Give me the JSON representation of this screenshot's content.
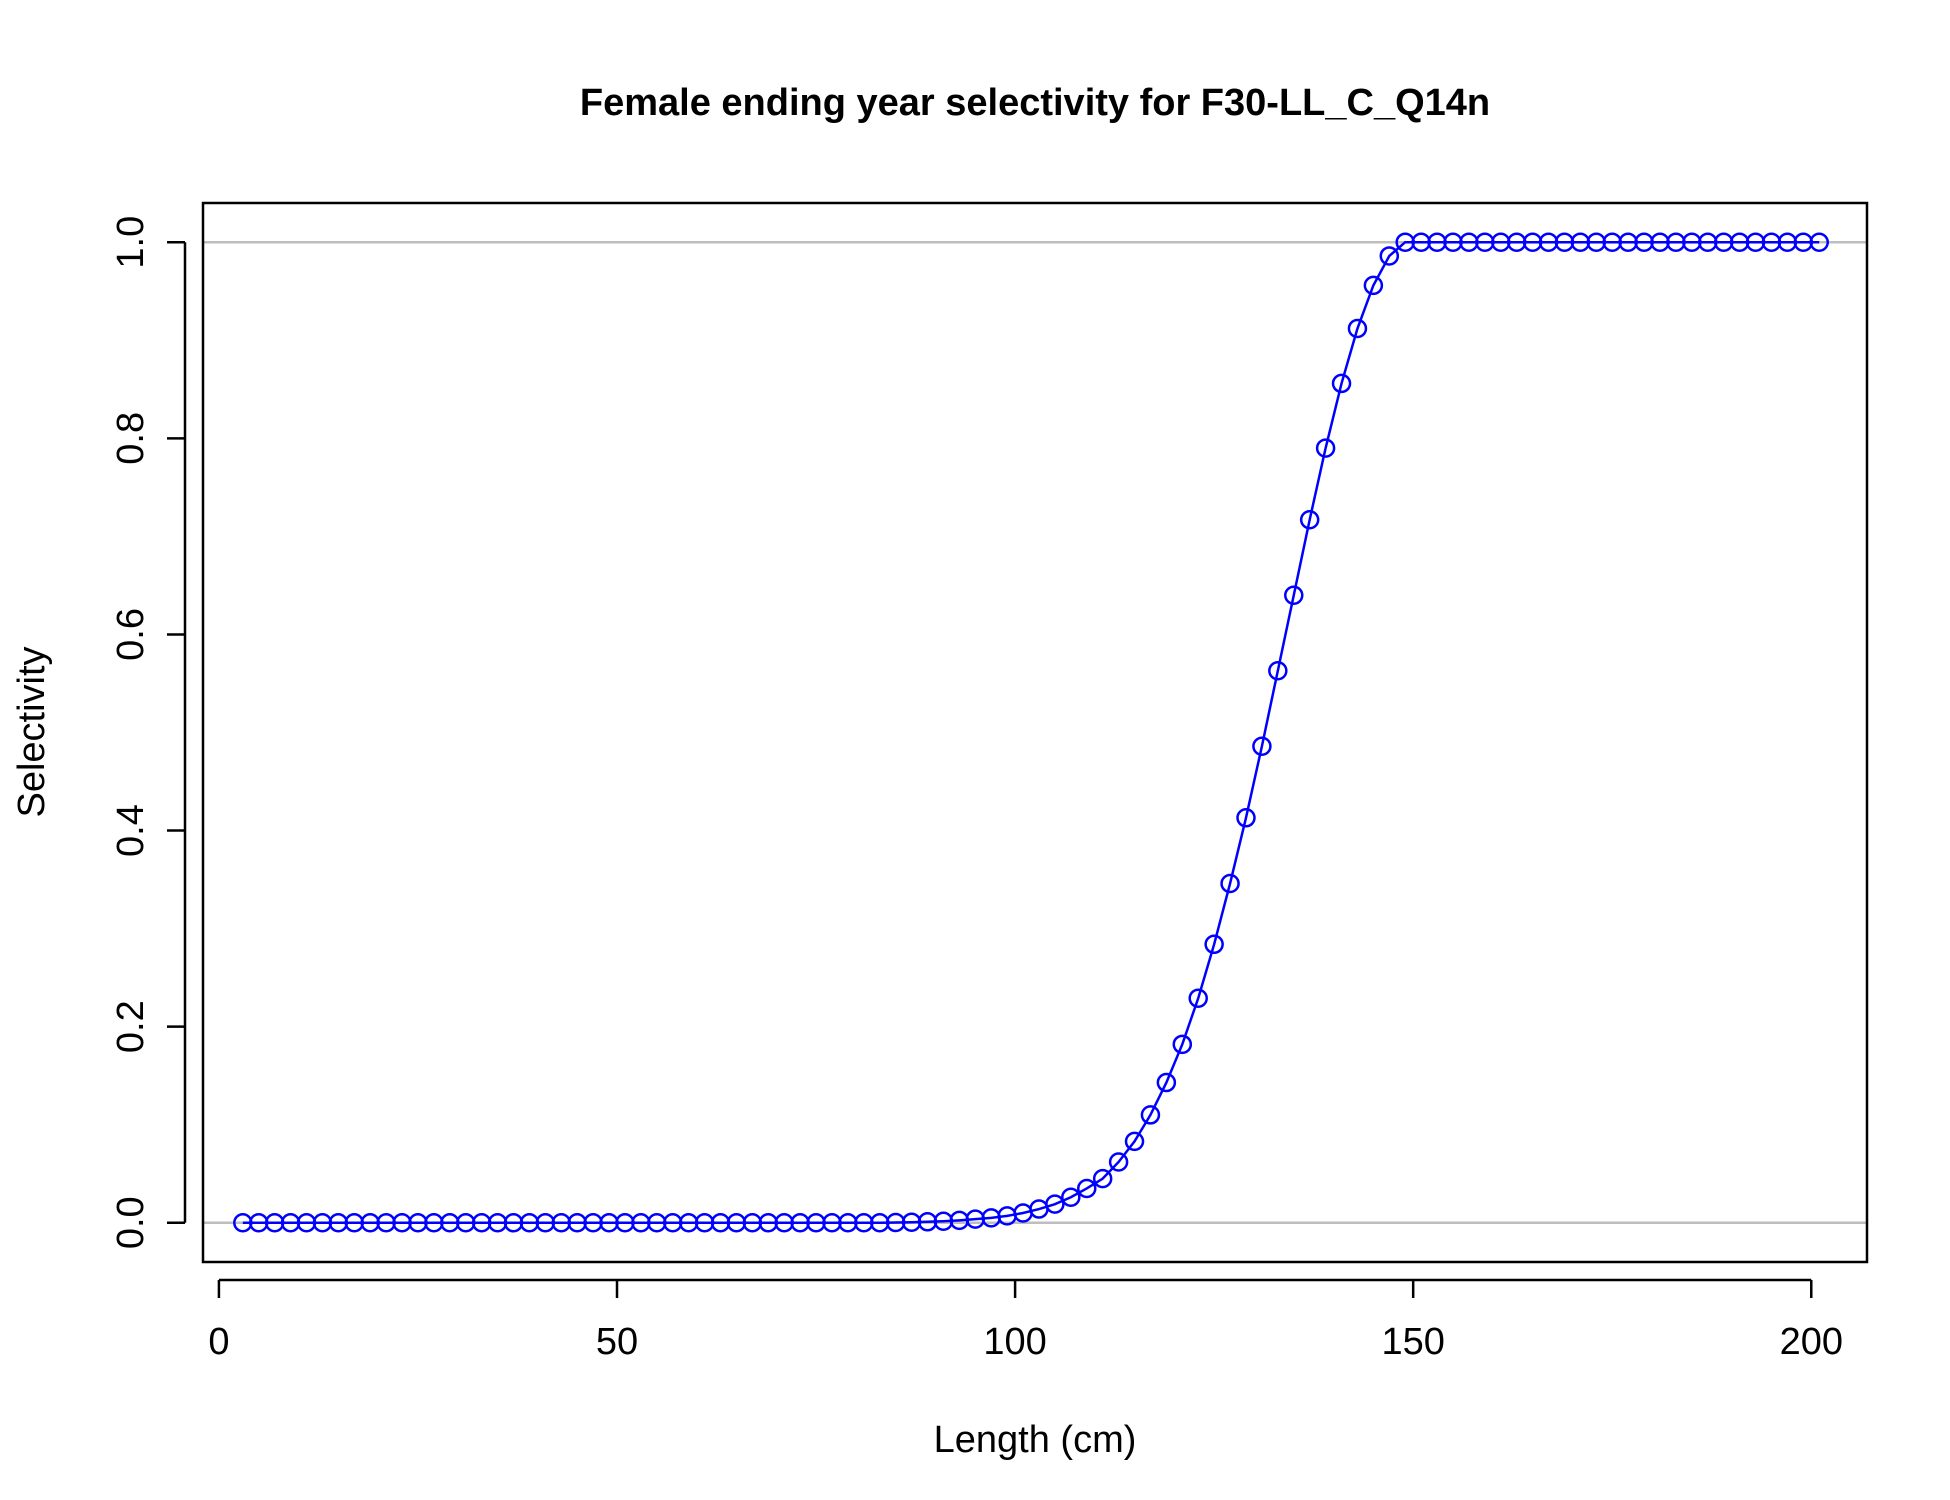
{
  "chart_data": {
    "type": "line",
    "title": "Female ending year selectivity for F30-LL_C_Q14n",
    "xlabel": "Length (cm)",
    "ylabel": "Selectivity",
    "xlim": [
      -2,
      207
    ],
    "ylim": [
      -0.04,
      1.04
    ],
    "x_ticks": [
      0,
      50,
      100,
      150,
      200
    ],
    "y_ticks": [
      0.0,
      0.2,
      0.4,
      0.6,
      0.8,
      1.0
    ],
    "x_tick_labels": [
      "0",
      "50",
      "100",
      "150",
      "200"
    ],
    "y_tick_labels": [
      "0.0",
      "0.2",
      "0.4",
      "0.6",
      "0.8",
      "1.0"
    ],
    "reference_lines_y": [
      0,
      1
    ],
    "grid": false,
    "legend": "none",
    "series": [
      {
        "color": "#0000ff",
        "marker": "open-circle",
        "line": true,
        "x": [
          3,
          5,
          7,
          9,
          11,
          13,
          15,
          17,
          19,
          21,
          23,
          25,
          27,
          29,
          31,
          33,
          35,
          37,
          39,
          41,
          43,
          45,
          47,
          49,
          51,
          53,
          55,
          57,
          59,
          61,
          63,
          65,
          67,
          69,
          71,
          73,
          75,
          77,
          79,
          81,
          83,
          85,
          87,
          89,
          91,
          93,
          95,
          97,
          99,
          101,
          103,
          105,
          107,
          109,
          111,
          113,
          115,
          117,
          119,
          121,
          123,
          125,
          127,
          129,
          131,
          133,
          135,
          137,
          139,
          141,
          143,
          145,
          147,
          149,
          151,
          153,
          155,
          157,
          159,
          161,
          163,
          165,
          167,
          169,
          171,
          173,
          175,
          177,
          179,
          181,
          183,
          185,
          187,
          189,
          191,
          193,
          195,
          197,
          199,
          201
        ],
        "y": [
          0,
          0,
          0,
          0,
          0,
          0,
          0,
          0,
          0,
          0,
          0,
          0,
          0,
          0,
          0,
          0,
          0,
          0,
          0,
          0,
          0,
          0,
          0,
          0,
          0,
          0,
          0,
          0,
          0,
          0,
          0,
          0,
          0,
          0,
          0,
          0,
          0,
          0,
          0,
          0,
          0,
          0.0003,
          0.0006,
          0.001,
          0.0016,
          0.0025,
          0.0037,
          0.005,
          0.007,
          0.01,
          0.014,
          0.019,
          0.026,
          0.035,
          0.045,
          0.062,
          0.083,
          0.11,
          0.143,
          0.182,
          0.229,
          0.284,
          0.346,
          0.413,
          0.486,
          0.563,
          0.64,
          0.717,
          0.79,
          0.856,
          0.912,
          0.956,
          0.986,
          1.0,
          1.0,
          1.0,
          1.0,
          1.0,
          1.0,
          1.0,
          1.0,
          1.0,
          1.0,
          1.0,
          1.0,
          1.0,
          1.0,
          1.0,
          1.0,
          1.0,
          1.0,
          1.0,
          1.0,
          1.0,
          1.0,
          1.0,
          1.0,
          1.0,
          1.0,
          1.0
        ]
      }
    ]
  }
}
